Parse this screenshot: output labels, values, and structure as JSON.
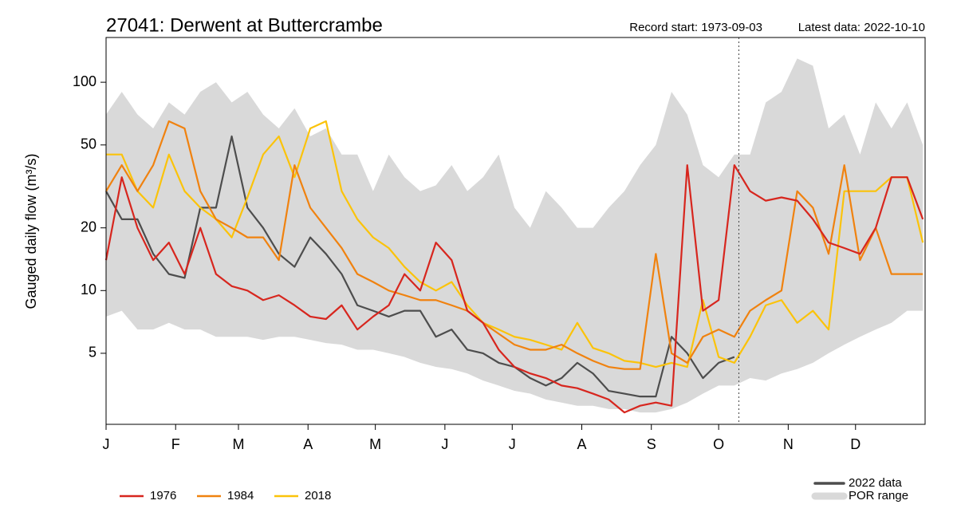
{
  "chart_data": {
    "type": "line",
    "title": "27041: Derwent at Buttercrambe",
    "record_start": "Record start: 1973-09-03",
    "latest_data": "Latest data: 2022-10-10",
    "y_label": "Gauged daily flow (m³/s)",
    "log_y": true,
    "xlim": [
      1,
      366
    ],
    "ylim": [
      2.28,
      164
    ],
    "yticks": [
      5,
      10,
      20,
      50,
      100
    ],
    "xticks": [
      {
        "value": 1,
        "label": "J"
      },
      {
        "value": 32,
        "label": "F"
      },
      {
        "value": 60,
        "label": "M"
      },
      {
        "value": 91,
        "label": "A"
      },
      {
        "value": 121,
        "label": "M"
      },
      {
        "value": 152,
        "label": "J"
      },
      {
        "value": 182,
        "label": "J"
      },
      {
        "value": 213,
        "label": "A"
      },
      {
        "value": 244,
        "label": "S"
      },
      {
        "value": 274,
        "label": "O"
      },
      {
        "value": 305,
        "label": "N"
      },
      {
        "value": 335,
        "label": "D"
      }
    ],
    "latest_data_x": 283,
    "x": [
      1,
      8,
      15,
      22,
      29,
      36,
      43,
      50,
      57,
      64,
      71,
      78,
      85,
      92,
      99,
      106,
      113,
      120,
      127,
      134,
      141,
      148,
      155,
      162,
      169,
      176,
      183,
      190,
      197,
      204,
      211,
      218,
      225,
      232,
      239,
      246,
      253,
      260,
      267,
      274,
      281,
      288,
      295,
      302,
      309,
      316,
      323,
      330,
      337,
      344,
      351,
      358,
      365
    ],
    "series": [
      {
        "name": "1976",
        "color": "#d7261e",
        "values": [
          14,
          35,
          20,
          14,
          17,
          12,
          20,
          12,
          10.5,
          10,
          9,
          9.5,
          8.5,
          7.5,
          7.3,
          8.5,
          6.5,
          7.5,
          8.5,
          12,
          10,
          17,
          14,
          8,
          7,
          5.2,
          4.3,
          4,
          3.8,
          3.5,
          3.4,
          3.2,
          3.0,
          2.6,
          2.8,
          2.9,
          2.8,
          40,
          8,
          9,
          40,
          30,
          27,
          28,
          27,
          22,
          17,
          16,
          15,
          20,
          35,
          35,
          22
        ]
      },
      {
        "name": "1984",
        "color": "#f0820f",
        "values": [
          30,
          40,
          30,
          40,
          65,
          60,
          30,
          22,
          20,
          18,
          18,
          14,
          40,
          25,
          20,
          16,
          12,
          11,
          10,
          9.5,
          9,
          9,
          8.5,
          8,
          7,
          6.2,
          5.5,
          5.2,
          5.2,
          5.5,
          5.0,
          4.6,
          4.3,
          4.2,
          4.2,
          15,
          5,
          4.5,
          6,
          6.5,
          6,
          8,
          9,
          10,
          30,
          25,
          15,
          40,
          14,
          20,
          12,
          12,
          12
        ]
      },
      {
        "name": "2018",
        "color": "#fbc30a",
        "values": [
          45,
          45,
          30,
          25,
          45,
          30,
          25,
          22,
          18,
          28,
          45,
          55,
          35,
          60,
          65,
          30,
          22,
          18,
          16,
          13,
          11,
          10,
          11,
          8.5,
          7,
          6.5,
          6,
          5.8,
          5.5,
          5.2,
          7,
          5.3,
          5,
          4.6,
          4.5,
          4.3,
          4.5,
          4.3,
          9,
          4.8,
          4.5,
          6,
          8.5,
          9,
          7,
          8,
          6.5,
          30,
          30,
          30,
          35,
          35,
          17
        ]
      },
      {
        "name": "2022 data",
        "color": "#4d4d4d",
        "values": [
          30,
          22,
          22,
          15,
          12,
          11.5,
          25,
          25,
          55,
          25,
          20,
          15,
          13,
          18,
          15,
          12,
          8.5,
          8,
          7.5,
          8,
          8,
          6,
          6.5,
          5.2,
          5,
          4.5,
          4.3,
          3.8,
          3.5,
          3.8,
          4.5,
          4.0,
          3.3,
          3.2,
          3.1,
          3.1,
          6,
          5,
          3.8,
          4.5,
          4.8,
          null,
          null,
          null,
          null,
          null,
          null,
          null,
          null,
          null,
          null,
          null,
          null
        ]
      },
      {
        "name": "POR range",
        "color": "#d9d9d9",
        "upper": [
          70,
          90,
          70,
          60,
          80,
          70,
          90,
          100,
          80,
          90,
          70,
          60,
          75,
          55,
          60,
          45,
          45,
          30,
          45,
          35,
          30,
          32,
          40,
          30,
          35,
          45,
          25,
          20,
          30,
          25,
          20,
          20,
          25,
          30,
          40,
          50,
          90,
          70,
          40,
          35,
          45,
          45,
          80,
          90,
          130,
          120,
          60,
          70,
          45,
          80,
          60,
          80,
          50
        ],
        "lower": [
          7.5,
          8,
          6.5,
          6.5,
          7,
          6.5,
          6.5,
          6,
          6,
          6,
          5.8,
          6,
          6,
          5.8,
          5.6,
          5.5,
          5.2,
          5.2,
          5,
          4.8,
          4.5,
          4.3,
          4.2,
          4,
          3.7,
          3.5,
          3.3,
          3.2,
          3.0,
          2.9,
          2.8,
          2.8,
          2.7,
          2.7,
          2.6,
          2.6,
          2.7,
          2.9,
          3.2,
          3.5,
          3.5,
          3.8,
          3.7,
          4,
          4.2,
          4.5,
          5,
          5.5,
          6,
          6.5,
          7,
          8,
          8
        ]
      }
    ]
  }
}
